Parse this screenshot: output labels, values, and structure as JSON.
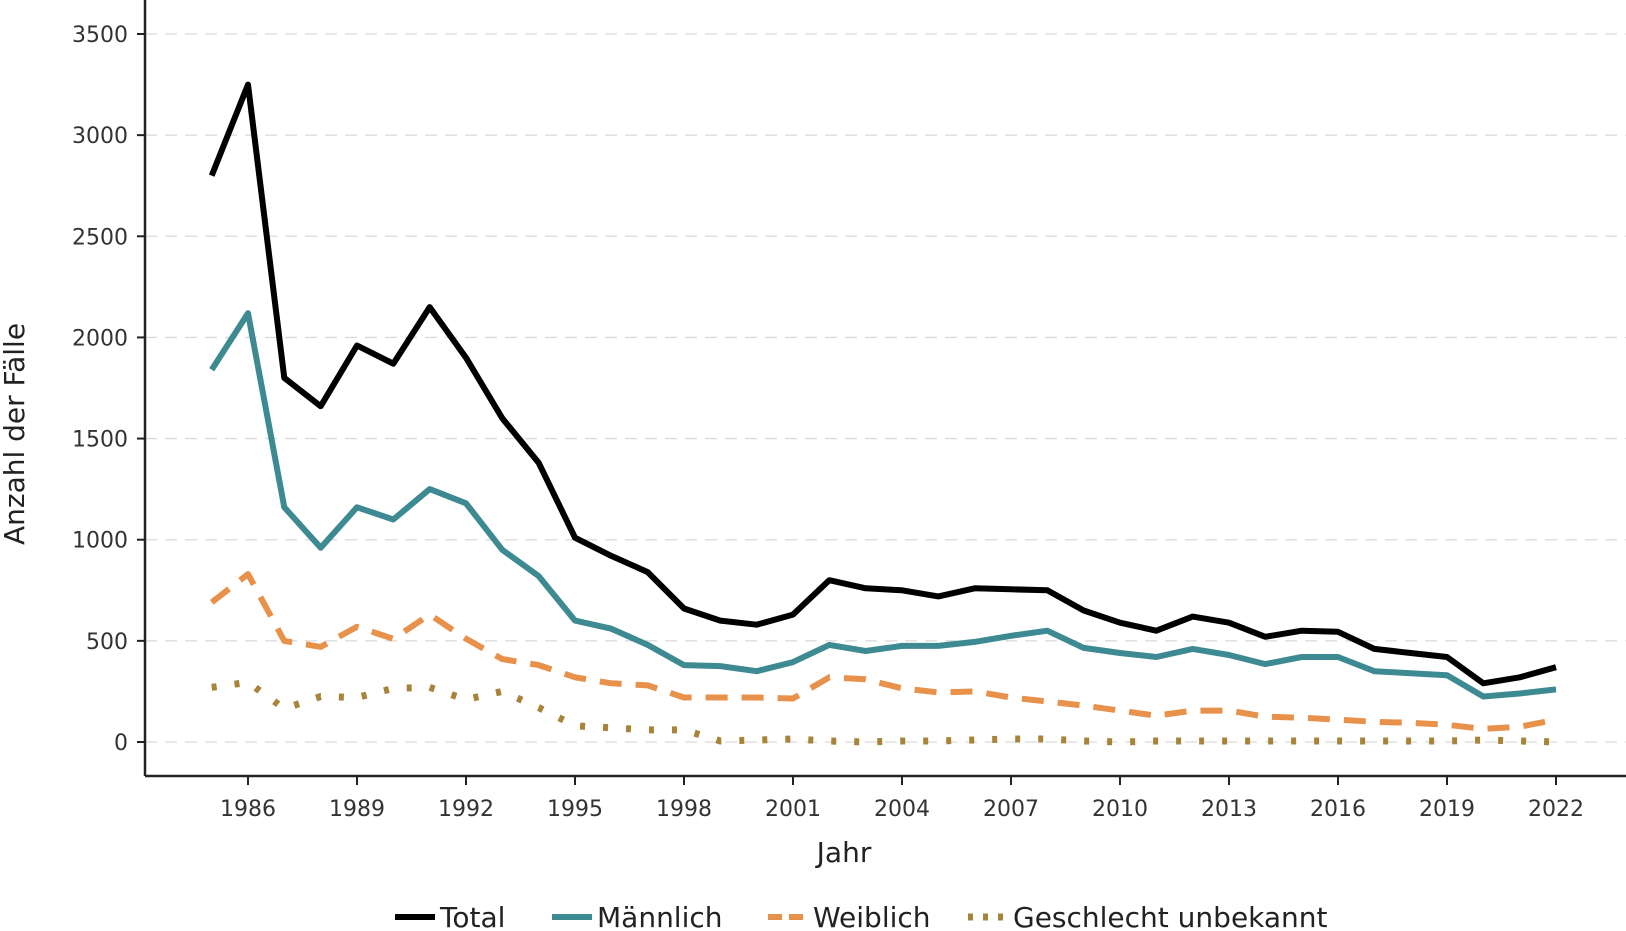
{
  "chart_data": {
    "type": "line",
    "title": "",
    "xlabel": "Jahr",
    "ylabel": "Anzahl der Fälle",
    "xlim": [
      1983.9,
      1023
    ],
    "ylim": [
      -170,
      3520
    ],
    "x_ticks": [
      1986,
      1989,
      1992,
      1995,
      1998,
      2001,
      2004,
      2007,
      2010,
      2013,
      2016,
      2019,
      2022
    ],
    "y_ticks": [
      0,
      500,
      1000,
      1500,
      2000,
      2500,
      3000,
      3500
    ],
    "grid": "horizontal dashed",
    "legend_position": "bottom",
    "x": [
      1985,
      1986,
      1987,
      1988,
      1989,
      1990,
      1991,
      1992,
      1993,
      1994,
      1995,
      1996,
      1997,
      1998,
      1999,
      2000,
      2001,
      2002,
      2003,
      2004,
      2005,
      2006,
      2007,
      2008,
      2009,
      2010,
      2011,
      2012,
      2013,
      2014,
      2015,
      2016,
      2017,
      2018,
      2019,
      2020,
      2021,
      2022
    ],
    "series": [
      {
        "name": "Total",
        "color": "#000000",
        "dash": "solid",
        "values": [
          2800,
          3250,
          1800,
          1660,
          1960,
          1870,
          2150,
          1900,
          1600,
          1380,
          1010,
          920,
          840,
          660,
          600,
          580,
          630,
          800,
          760,
          750,
          720,
          760,
          755,
          750,
          650,
          590,
          550,
          620,
          590,
          520,
          550,
          545,
          460,
          440,
          420,
          290,
          320,
          370
        ]
      },
      {
        "name": "Männlich",
        "color": "#3E8A92",
        "dash": "solid",
        "values": [
          1840,
          2120,
          1160,
          960,
          1160,
          1100,
          1250,
          1180,
          950,
          820,
          600,
          560,
          480,
          380,
          375,
          350,
          395,
          480,
          450,
          475,
          475,
          495,
          525,
          550,
          465,
          440,
          420,
          460,
          430,
          385,
          420,
          420,
          350,
          340,
          330,
          225,
          240,
          260
        ]
      },
      {
        "name": "Weiblich",
        "color": "#E8914A",
        "dash": "dashed",
        "values": [
          690,
          830,
          500,
          470,
          570,
          510,
          630,
          510,
          410,
          380,
          320,
          290,
          280,
          220,
          220,
          220,
          215,
          320,
          310,
          265,
          245,
          250,
          220,
          200,
          180,
          155,
          130,
          155,
          155,
          125,
          120,
          110,
          100,
          95,
          85,
          65,
          75,
          110
        ]
      },
      {
        "name": "Geschlecht unbekannt",
        "color": "#A8843A",
        "dash": "dotted",
        "values": [
          270,
          295,
          165,
          225,
          220,
          265,
          270,
          210,
          250,
          170,
          80,
          70,
          60,
          60,
          5,
          10,
          15,
          5,
          0,
          5,
          5,
          10,
          15,
          15,
          5,
          0,
          5,
          5,
          5,
          5,
          5,
          5,
          5,
          5,
          5,
          10,
          5,
          0
        ]
      }
    ]
  }
}
